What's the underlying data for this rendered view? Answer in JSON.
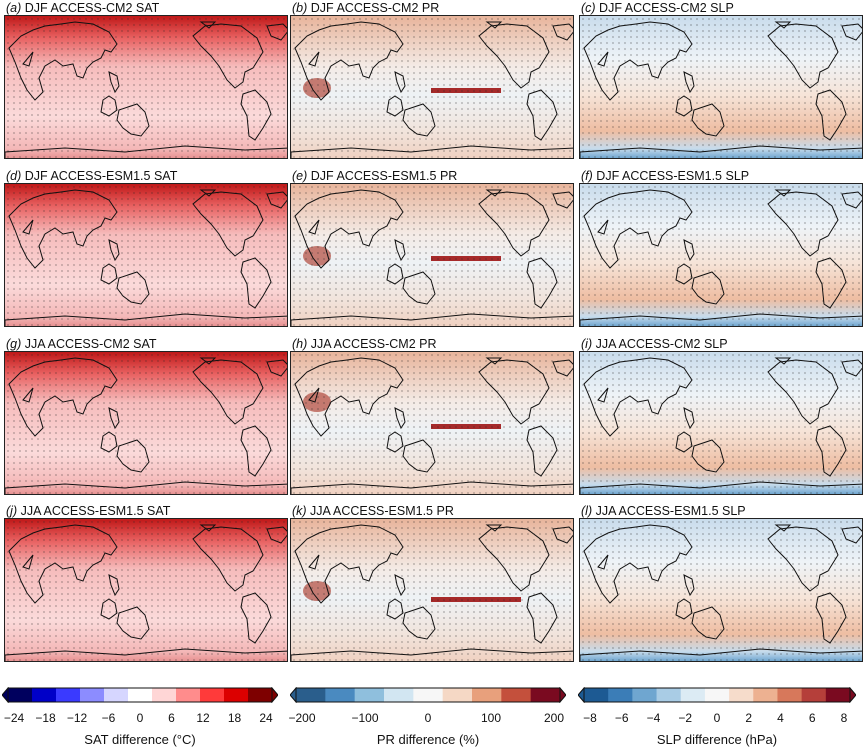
{
  "panels": [
    {
      "tag": "a",
      "title": "DJF ACCESS-CM2 SAT",
      "var": "sat"
    },
    {
      "tag": "b",
      "title": "DJF ACCESS-CM2 PR",
      "var": "pr"
    },
    {
      "tag": "c",
      "title": "DJF ACCESS-CM2 SLP",
      "var": "slp"
    },
    {
      "tag": "d",
      "title": "DJF ACCESS-ESM1.5 SAT",
      "var": "sat"
    },
    {
      "tag": "e",
      "title": "DJF ACCESS-ESM1.5 PR",
      "var": "pr"
    },
    {
      "tag": "f",
      "title": "DJF ACCESS-ESM1.5 SLP",
      "var": "slp"
    },
    {
      "tag": "g",
      "title": "JJA ACCESS-CM2 SAT",
      "var": "sat"
    },
    {
      "tag": "h",
      "title": "JJA ACCESS-CM2 PR",
      "var": "pr"
    },
    {
      "tag": "i",
      "title": "JJA ACCESS-CM2 SLP",
      "var": "slp"
    },
    {
      "tag": "j",
      "title": "JJA ACCESS-ESM1.5 SAT",
      "var": "sat"
    },
    {
      "tag": "k",
      "title": "JJA ACCESS-ESM1.5 PR",
      "var": "pr"
    },
    {
      "tag": "l",
      "title": "JJA ACCESS-ESM1.5 SLP",
      "var": "slp"
    }
  ],
  "colorbars": [
    {
      "id": "sat",
      "title": "SAT difference (°C)",
      "ticks": [
        "−24",
        "−18",
        "−12",
        "−6",
        "0",
        "6",
        "12",
        "18",
        "24"
      ],
      "colors": [
        "#00005e",
        "#0000c8",
        "#3a3aff",
        "#8c8cff",
        "#d6d6ff",
        "#ffffff",
        "#ffd6d6",
        "#ff8c8c",
        "#ff3a3a",
        "#dc0000",
        "#7e0000"
      ]
    },
    {
      "id": "pr",
      "title": "PR difference (%)",
      "ticks": [
        "−200",
        "−100",
        "0",
        "100",
        "200"
      ],
      "colors": [
        "#2a5e8c",
        "#4a8ac0",
        "#8fbfdd",
        "#d2e6f2",
        "#f7f7f7",
        "#f5d8c5",
        "#e8a07c",
        "#c4503c",
        "#7a0a20"
      ]
    },
    {
      "id": "slp",
      "title": "SLP difference (hPa)",
      "ticks": [
        "−8",
        "−6",
        "−4",
        "−2",
        "0",
        "2",
        "4",
        "6",
        "8"
      ],
      "colors": [
        "#1d5a93",
        "#3b7db7",
        "#6fa6d0",
        "#a9cce5",
        "#dcebf4",
        "#f7f7f7",
        "#f6dccb",
        "#edb191",
        "#d7785b",
        "#b53f3a",
        "#7a0a20"
      ]
    }
  ]
}
